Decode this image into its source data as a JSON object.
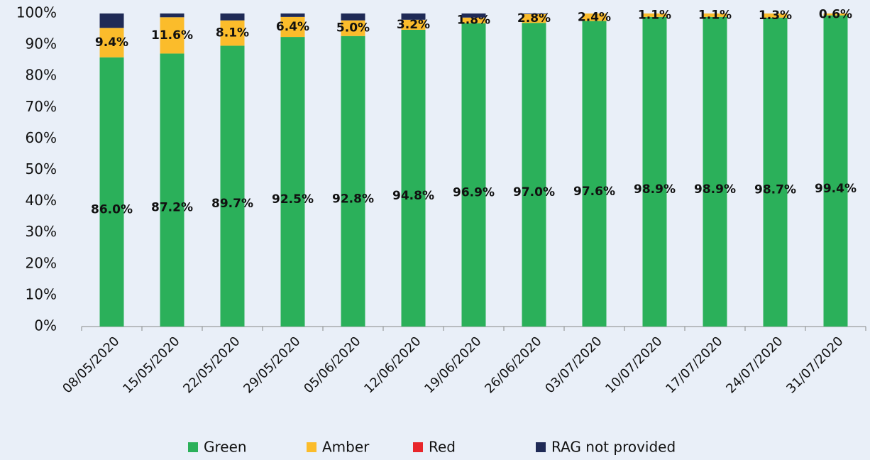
{
  "chart_data": {
    "type": "stacked_bar",
    "categories": [
      "08/05/2020",
      "15/05/2020",
      "22/05/2020",
      "29/05/2020",
      "05/06/2020",
      "12/06/2020",
      "19/06/2020",
      "26/06/2020",
      "03/07/2020",
      "10/07/2020",
      "17/07/2020",
      "24/07/2020",
      "31/07/2020"
    ],
    "series": [
      {
        "name": "Green",
        "color": "#2bb05a",
        "values": [
          86.0,
          87.2,
          89.7,
          92.5,
          92.8,
          94.8,
          96.9,
          97.0,
          97.6,
          98.9,
          98.9,
          98.7,
          99.4
        ],
        "value_labels": [
          "86.0%",
          "87.2%",
          "89.7%",
          "92.5%",
          "92.8%",
          "94.8%",
          "96.9%",
          "97.0%",
          "97.6%",
          "98.9%",
          "98.9%",
          "98.7%",
          "99.4%"
        ]
      },
      {
        "name": "Amber",
        "color": "#fbbc2b",
        "values": [
          9.4,
          11.6,
          8.1,
          6.4,
          5.0,
          3.2,
          1.8,
          2.8,
          2.4,
          1.1,
          1.1,
          1.3,
          0.6
        ],
        "value_labels": [
          "9.4%",
          "11.6%",
          "8.1%",
          "6.4%",
          "5.0%",
          "3.2%",
          "1.8%",
          "2.8%",
          "2.4%",
          "1.1%",
          "1.1%",
          "1.3%",
          "0.6%"
        ]
      },
      {
        "name": "Red",
        "color": "#e8262b",
        "values": [
          0,
          0,
          0,
          0,
          0,
          0,
          0,
          0,
          0,
          0,
          0,
          0,
          0
        ]
      },
      {
        "name": "RAG not provided",
        "color": "#1f2a56",
        "values": [
          4.6,
          1.2,
          2.2,
          1.1,
          2.2,
          2.0,
          1.3,
          0.2,
          0,
          0,
          0,
          0,
          0
        ]
      }
    ],
    "ylim": [
      0,
      100
    ],
    "yticks": [
      {
        "value": 0,
        "label": "0%"
      },
      {
        "value": 10,
        "label": "10%"
      },
      {
        "value": 20,
        "label": "20%"
      },
      {
        "value": 30,
        "label": "30%"
      },
      {
        "value": 40,
        "label": "40%"
      },
      {
        "value": 50,
        "label": "50%"
      },
      {
        "value": 60,
        "label": "60%"
      },
      {
        "value": 70,
        "label": "70%"
      },
      {
        "value": 80,
        "label": "80%"
      },
      {
        "value": 90,
        "label": "90%"
      },
      {
        "value": 100,
        "label": "100%"
      }
    ],
    "grid": false,
    "legend": "bottom"
  }
}
